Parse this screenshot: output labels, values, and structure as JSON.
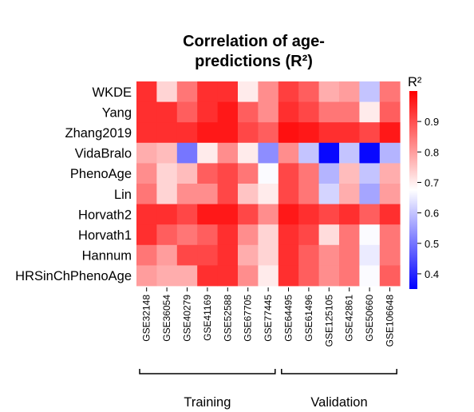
{
  "chart_data": {
    "type": "heatmap",
    "title_lines": [
      "Correlation of age-",
      "predictions (R²)"
    ],
    "rows": [
      "WKDE",
      "Yang",
      "Zhang2019",
      "VidaBralo",
      "PhenoAge",
      "Lin",
      "Horvath2",
      "Horvath1",
      "Hannum",
      "HRSinChPhenoAge"
    ],
    "columns": [
      "GSE32148",
      "GSE36054",
      "GSE40279",
      "GSE41169",
      "GSE52588",
      "GSE67705",
      "GSE77445",
      "GSE64495",
      "GSE61496",
      "GSE125105",
      "GSE42861",
      "GSE50660",
      "GSE106648"
    ],
    "values": [
      [
        0.94,
        0.73,
        0.85,
        0.94,
        0.94,
        0.7,
        0.82,
        0.92,
        0.88,
        0.78,
        0.8,
        0.6,
        0.85
      ],
      [
        0.94,
        0.94,
        0.88,
        0.94,
        0.97,
        0.88,
        0.82,
        0.94,
        0.91,
        0.85,
        0.85,
        0.7,
        0.88
      ],
      [
        0.94,
        0.94,
        0.94,
        0.97,
        0.97,
        0.91,
        0.88,
        0.98,
        0.97,
        0.94,
        0.94,
        0.91,
        0.97
      ],
      [
        0.78,
        0.76,
        0.5,
        0.7,
        0.82,
        0.7,
        0.53,
        0.82,
        0.6,
        0.36,
        0.6,
        0.36,
        0.58
      ],
      [
        0.82,
        0.73,
        0.76,
        0.88,
        0.91,
        0.85,
        0.67,
        0.91,
        0.85,
        0.58,
        0.76,
        0.6,
        0.78
      ],
      [
        0.85,
        0.73,
        0.82,
        0.82,
        0.91,
        0.75,
        0.7,
        0.91,
        0.85,
        0.62,
        0.78,
        0.56,
        0.8
      ],
      [
        0.94,
        0.94,
        0.91,
        0.97,
        0.97,
        0.91,
        0.82,
        0.97,
        0.94,
        0.91,
        0.94,
        0.88,
        0.94
      ],
      [
        0.94,
        0.88,
        0.85,
        0.88,
        0.94,
        0.82,
        0.73,
        0.94,
        0.91,
        0.72,
        0.85,
        0.67,
        0.85
      ],
      [
        0.85,
        0.8,
        0.91,
        0.91,
        0.94,
        0.78,
        0.73,
        0.94,
        0.88,
        0.82,
        0.85,
        0.65,
        0.85
      ],
      [
        0.8,
        0.78,
        0.78,
        0.94,
        0.94,
        0.82,
        0.7,
        0.94,
        0.88,
        0.82,
        0.85,
        0.67,
        0.88
      ]
    ],
    "groups": [
      {
        "label": "Training",
        "columns": [
          "GSE32148",
          "GSE36054",
          "GSE40279",
          "GSE41169",
          "GSE52588",
          "GSE67705",
          "GSE77445"
        ]
      },
      {
        "label": "Validation",
        "columns": [
          "GSE64495",
          "GSE61496",
          "GSE125105",
          "GSE42861",
          "GSE50660",
          "GSE106648"
        ]
      }
    ],
    "colorbar": {
      "label": "R²",
      "min": 0.35,
      "max": 1.0,
      "ticks": [
        0.4,
        0.5,
        0.6,
        0.7,
        0.8,
        0.9
      ],
      "tick_labels": [
        "0.4",
        "0.5",
        "0.6",
        "0.7",
        "0.8",
        "0.9"
      ],
      "colors": {
        "low": "#0000ff",
        "mid": "#ffffff",
        "high": "#ff0000"
      }
    }
  }
}
